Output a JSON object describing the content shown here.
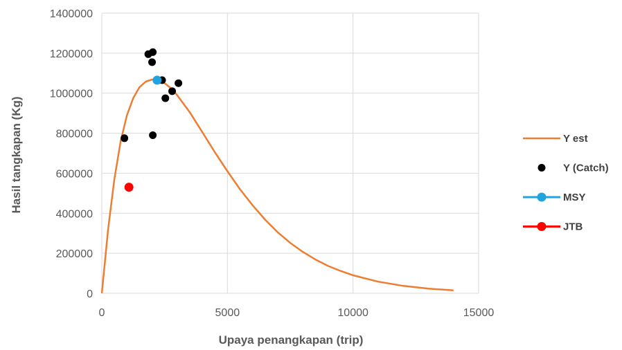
{
  "chart_data": {
    "type": "scatter",
    "xlabel": "Upaya penangkapan (trip)",
    "ylabel": "Hasil tangkapan (Kg)",
    "xlim": [
      0,
      15000
    ],
    "ylim": [
      0,
      1400000
    ],
    "x_ticks": [
      "0",
      "5000",
      "10000",
      "15000"
    ],
    "y_ticks": [
      "0",
      "200000",
      "400000",
      "600000",
      "800000",
      "1000000",
      "1200000",
      "1400000"
    ],
    "grid": "vertical-and-horizontal",
    "legend_position": "right",
    "series": [
      {
        "name": "Y est",
        "kind": "line",
        "color": "#ED7D31",
        "x": [
          0,
          250,
          500,
          750,
          1000,
          1250,
          1500,
          1750,
          2000,
          2200,
          2500,
          2750,
          3000,
          3500,
          4000,
          4500,
          5000,
          5500,
          6000,
          6500,
          7000,
          7500,
          8000,
          8500,
          9000,
          9500,
          10000,
          11000,
          12000,
          13000,
          14000
        ],
        "y": [
          0,
          320000,
          570000,
          760000,
          890000,
          975000,
          1030000,
          1058000,
          1068000,
          1066000,
          1050000,
          1025000,
          990000,
          905000,
          805000,
          705000,
          610000,
          520000,
          440000,
          368000,
          305000,
          252000,
          207000,
          169000,
          137000,
          112000,
          90000,
          58000,
          37000,
          23000,
          15000
        ]
      },
      {
        "name": "Y (Catch)",
        "kind": "points",
        "color": "#000000",
        "x": [
          900,
          1850,
          2030,
          2000,
          2400,
          2530,
          2800,
          3050,
          2030
        ],
        "y": [
          775000,
          1195000,
          1205000,
          1155000,
          1065000,
          975000,
          1010000,
          1050000,
          790000
        ]
      },
      {
        "name": "MSY",
        "kind": "points",
        "color": "#1FA4E0",
        "x": [
          2200
        ],
        "y": [
          1065000
        ]
      },
      {
        "name": "JTB",
        "kind": "points",
        "color": "#FF0000",
        "x": [
          1080
        ],
        "y": [
          530000
        ]
      }
    ]
  }
}
